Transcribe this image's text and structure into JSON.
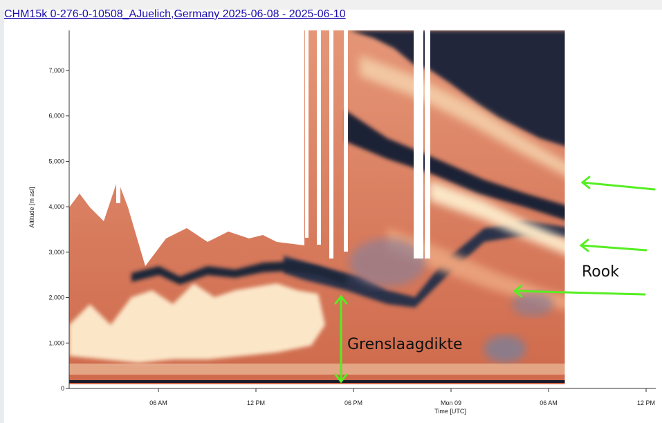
{
  "page": {
    "title": "CHM15k 0-276-0-10508_AJuelich,Germany 2025-06-08 - 2025-06-10"
  },
  "chart_data": {
    "type": "heatmap",
    "ylabel": "Altitude [m asl]",
    "xlabel": "Time [UTC]",
    "ylim": [
      0,
      7800
    ],
    "y_ticks": [
      {
        "value": 0,
        "label": "0"
      },
      {
        "value": 1000,
        "label": "1,000"
      },
      {
        "value": 2000,
        "label": "2,000"
      },
      {
        "value": 3000,
        "label": "3,000"
      },
      {
        "value": 4000,
        "label": "4,000"
      },
      {
        "value": 5000,
        "label": "5,000"
      },
      {
        "value": 6000,
        "label": "6,000"
      },
      {
        "value": 7000,
        "label": "7,000"
      }
    ],
    "x_ticks": [
      {
        "hour": 6,
        "label": "06 AM"
      },
      {
        "hour": 12,
        "label": "12 PM"
      },
      {
        "hour": 18,
        "label": "06 PM"
      },
      {
        "hour": 24,
        "label": "Mon 09"
      },
      {
        "hour": 30,
        "label": "06 AM"
      },
      {
        "hour": 36,
        "label": "12 PM"
      }
    ],
    "xlim_hours": [
      0,
      36.2
    ],
    "data_end_hour": 31.0,
    "grid": false,
    "colors": {
      "background_strong": "#cf6a4c",
      "high_scatter": "#fbeacb",
      "mid_scatter": "#e9a57c",
      "dark_signal": "#1b2436",
      "blue_grey": "#7d7f95",
      "surface_band": "#1a1a2a",
      "annotation_arrow": "#55ee22"
    },
    "annotations": [
      {
        "label": "Rook",
        "type": "arrows",
        "arrow_count": 3,
        "target_altitudes": [
          4500,
          3100,
          2200
        ]
      },
      {
        "label": "Grenslaagdikte",
        "type": "double-arrow",
        "from_altitude": 0,
        "to_altitude": 2050,
        "hour": 17.5
      }
    ]
  }
}
